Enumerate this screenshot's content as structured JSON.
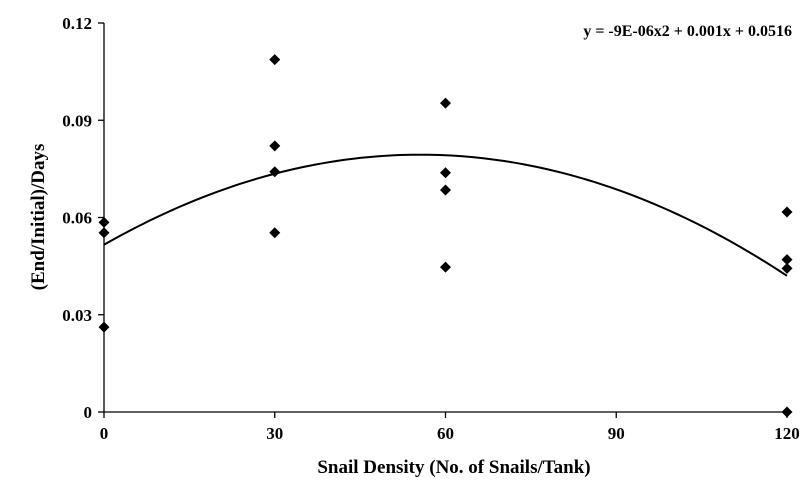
{
  "chart_data": {
    "type": "scatter",
    "title": "",
    "xlabel": "Snail Density (No. of Snails/Tank)",
    "ylabel": "(End/Initial)/Days",
    "xlim": [
      0,
      120
    ],
    "ylim": [
      0,
      0.12
    ],
    "x_ticks": [
      0,
      30,
      60,
      90,
      120
    ],
    "y_ticks": [
      0,
      0.03,
      0.06,
      0.09,
      0.12
    ],
    "x_tick_labels": [
      "0",
      "30",
      "60",
      "90",
      "120"
    ],
    "y_tick_labels": [
      "0",
      "0.03",
      "0.06",
      "0.09",
      "0.12"
    ],
    "grid": false,
    "legend": "none",
    "series": [
      {
        "marker": "diamond",
        "color": "#000000",
        "points": [
          {
            "x": 0,
            "y": 0.0585
          },
          {
            "x": 0,
            "y": 0.0553
          },
          {
            "x": 0,
            "y": 0.0262
          },
          {
            "x": 30,
            "y": 0.1087
          },
          {
            "x": 30,
            "y": 0.0821
          },
          {
            "x": 30,
            "y": 0.0741
          },
          {
            "x": 30,
            "y": 0.0553
          },
          {
            "x": 60,
            "y": 0.0953
          },
          {
            "x": 60,
            "y": 0.0738
          },
          {
            "x": 60,
            "y": 0.0685
          },
          {
            "x": 60,
            "y": 0.0447
          },
          {
            "x": 120,
            "y": 0.0617
          },
          {
            "x": 120,
            "y": 0.047
          },
          {
            "x": 120,
            "y": 0.0443
          },
          {
            "x": 120,
            "y": 0.0
          }
        ]
      }
    ],
    "trendline": {
      "type": "polynomial",
      "coefficients": {
        "a": -9e-06,
        "b": 0.001,
        "c": 0.0516
      },
      "equation_label": "y = -9E-06x2 + 0.001x + 0.0516",
      "equation_position": "top-right"
    }
  }
}
